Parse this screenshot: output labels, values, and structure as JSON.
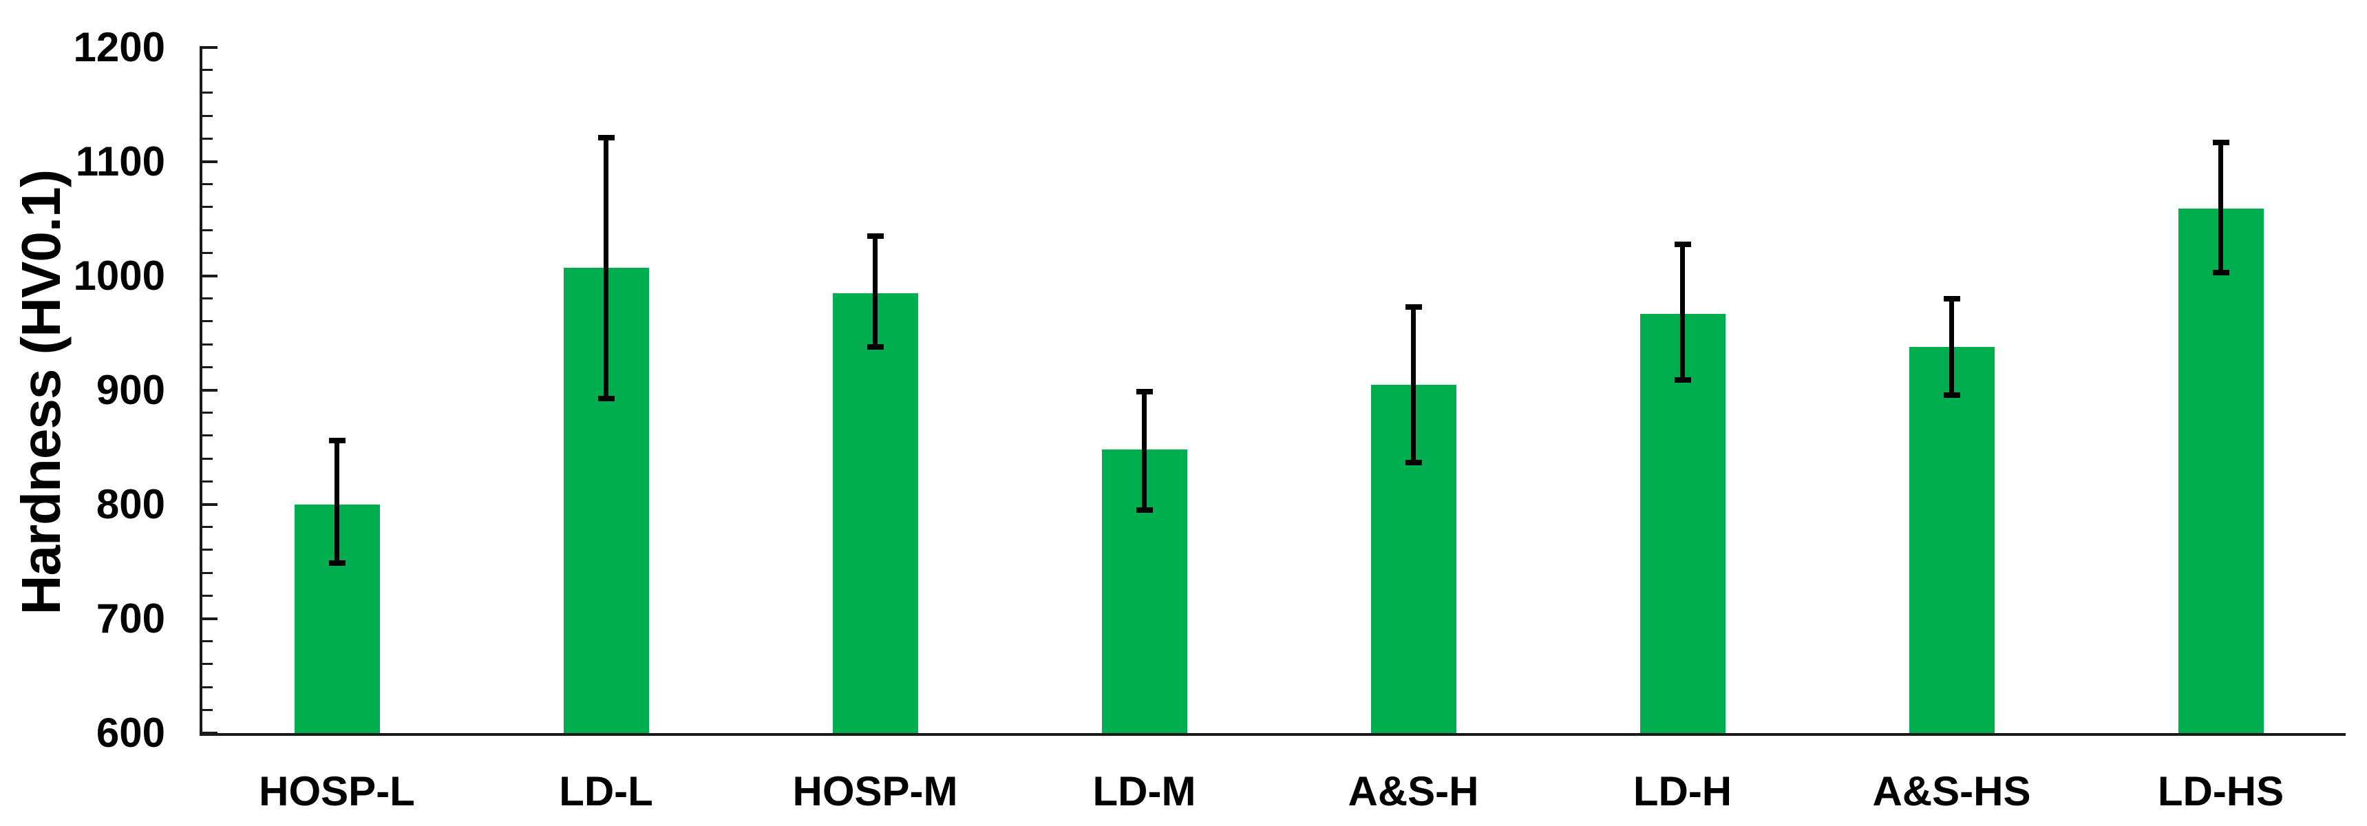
{
  "chart_data": {
    "type": "bar",
    "title": "",
    "ylabel": "Hardness (HV0.1)",
    "xlabel": "",
    "ylim": [
      600,
      1200
    ],
    "y_major_step": 100,
    "y_minor_step": 20,
    "y_tick_labels": [
      "600",
      "700",
      "800",
      "900",
      "1000",
      "1100",
      "1200"
    ],
    "categories": [
      "HOSP-L",
      "LD-L",
      "HOSP-M",
      "LD-M",
      "A&S-H",
      "LD-H",
      "A&S-HS",
      "LD-HS"
    ],
    "values": [
      800,
      1007,
      985,
      848,
      905,
      967,
      938,
      1059
    ],
    "error_whisker_low": [
      749,
      893,
      938,
      795,
      837,
      909,
      896,
      1003
    ],
    "error_whisker_high": [
      856,
      1121,
      1035,
      899,
      973,
      1028,
      980,
      1117
    ],
    "legend": null,
    "grid": false,
    "colors": {
      "bar": "#00AE50",
      "error_bar": "#000000",
      "axis": "#1a1a1a",
      "text": "#000000"
    }
  }
}
